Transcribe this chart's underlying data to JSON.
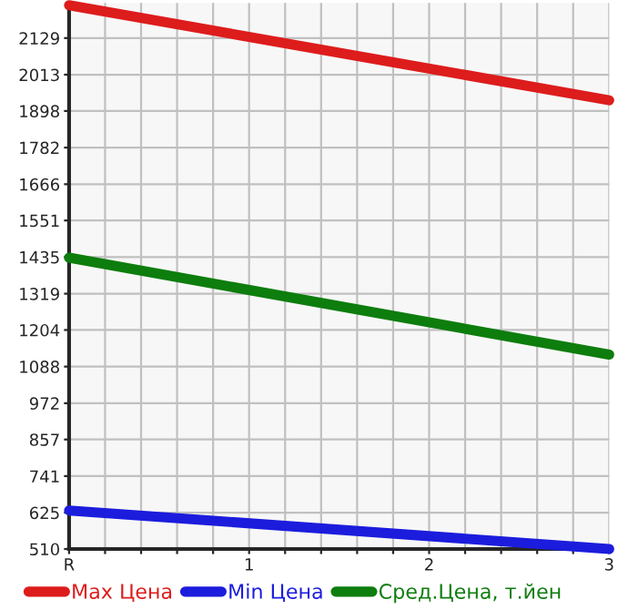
{
  "chart_data": {
    "type": "line",
    "x": [
      0,
      3
    ],
    "series": [
      {
        "name": "Max Цена",
        "color": "#dd1c1c",
        "values": [
          2233,
          1932
        ]
      },
      {
        "name": "Min Цена",
        "color": "#1c1cdd",
        "values": [
          632,
          510
        ]
      },
      {
        "name": "Сред.Цена, т.йен",
        "color": "#0d7d0d",
        "values": [
          1433,
          1126
        ]
      }
    ],
    "xlim": [
      0,
      3
    ],
    "xticks": [
      {
        "value": 0,
        "label": "R"
      },
      {
        "value": 0.2,
        "label": null
      },
      {
        "value": 0.4,
        "label": null
      },
      {
        "value": 0.6,
        "label": null
      },
      {
        "value": 0.8,
        "label": null
      },
      1,
      {
        "value": 1.2,
        "label": null
      },
      {
        "value": 1.4,
        "label": null
      },
      {
        "value": 1.6,
        "label": null
      },
      {
        "value": 1.8,
        "label": null
      },
      2,
      {
        "value": 2.2,
        "label": null
      },
      {
        "value": 2.4,
        "label": null
      },
      {
        "value": 2.6,
        "label": null
      },
      {
        "value": 2.8,
        "label": null
      },
      3
    ],
    "ylim": [
      510,
      2240
    ],
    "yticks": [
      510,
      625,
      741,
      857,
      972,
      1088,
      1204,
      1319,
      1435,
      1551,
      1666,
      1782,
      1898,
      2013,
      2129
    ],
    "grid": true,
    "legend": "bottom",
    "marker": "none",
    "line_style": "solid"
  }
}
